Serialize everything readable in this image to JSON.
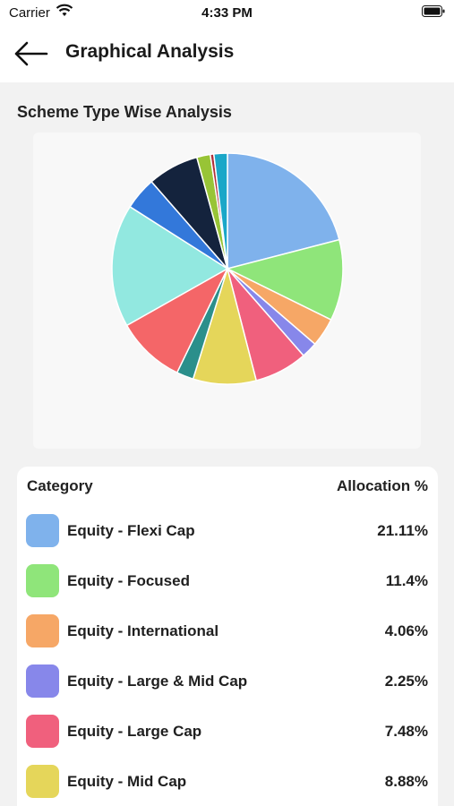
{
  "status_bar": {
    "carrier": "Carrier",
    "time": "4:33 PM"
  },
  "header": {
    "title": "Graphical Analysis",
    "back_icon": "arrow-left-icon"
  },
  "section": {
    "title": "Scheme Type Wise Analysis"
  },
  "legend": {
    "category_header": "Category",
    "allocation_header": "Allocation %",
    "rows": [
      {
        "label": "Equity - Flexi Cap",
        "value": "21.11%",
        "color": "#7fb2ec"
      },
      {
        "label": "Equity - Focused",
        "value": "11.4%",
        "color": "#8fe57a"
      },
      {
        "label": "Equity - International",
        "value": "4.06%",
        "color": "#f6a766"
      },
      {
        "label": "Equity - Large & Mid Cap",
        "value": "2.25%",
        "color": "#8787ea"
      },
      {
        "label": "Equity - Large Cap",
        "value": "7.48%",
        "color": "#f0607d"
      },
      {
        "label": "Equity - Mid Cap",
        "value": "8.88%",
        "color": "#e5d65a"
      }
    ]
  },
  "chart_data": {
    "type": "pie",
    "title": "",
    "slices": [
      {
        "label": "Equity - Flexi Cap",
        "value": 21.11,
        "color": "#7fb2ec"
      },
      {
        "label": "Equity - Focused",
        "value": 11.4,
        "color": "#8fe57a"
      },
      {
        "label": "Equity - International",
        "value": 4.06,
        "color": "#f6a766"
      },
      {
        "label": "Equity - Large & Mid Cap",
        "value": 2.25,
        "color": "#8787ea"
      },
      {
        "label": "Equity - Large Cap",
        "value": 7.48,
        "color": "#f0607d"
      },
      {
        "label": "Equity - Mid Cap",
        "value": 8.88,
        "color": "#e5d65a"
      },
      {
        "label": "",
        "value": 2.4,
        "color": "#2b8f8b"
      },
      {
        "label": "",
        "value": 9.7,
        "color": "#f46668"
      },
      {
        "label": "",
        "value": 17.3,
        "color": "#92e8e0"
      },
      {
        "label": "",
        "value": 4.6,
        "color": "#3378da"
      },
      {
        "label": "",
        "value": 7.2,
        "color": "#14233d"
      },
      {
        "label": "",
        "value": 1.9,
        "color": "#98c436"
      },
      {
        "label": "",
        "value": 0.5,
        "color": "#b0303a"
      },
      {
        "label": "",
        "value": 1.9,
        "color": "#1aa7c8"
      }
    ]
  }
}
